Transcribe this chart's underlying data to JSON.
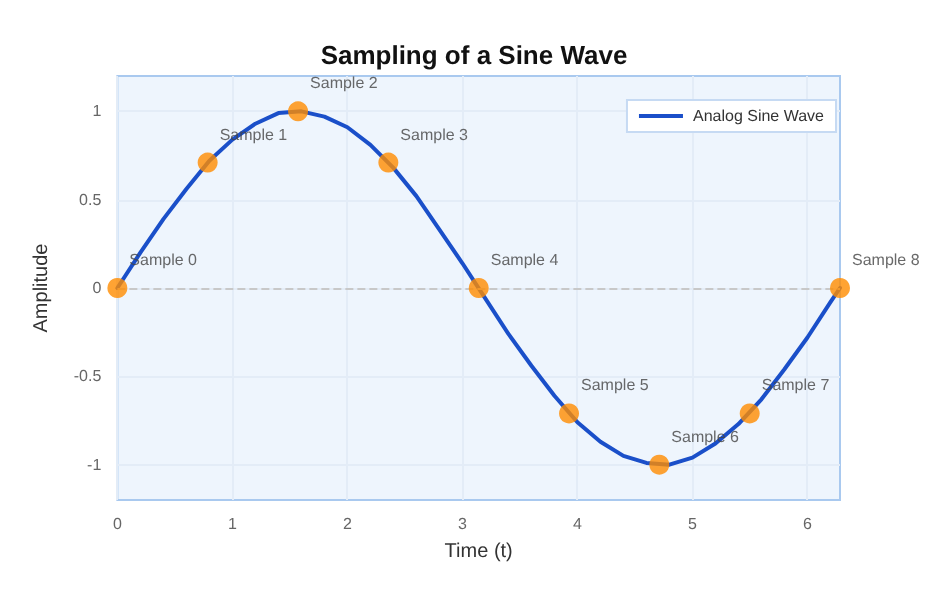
{
  "chart_data": {
    "type": "line",
    "title": "Sampling of a Sine Wave",
    "xlabel": "Time (t)",
    "ylabel": "Amplitude",
    "xlim": [
      0,
      6.283
    ],
    "xticks": [
      0,
      1,
      2,
      3,
      4,
      5,
      6
    ],
    "ylim": [
      -1.2,
      1.2
    ],
    "yticks": [
      -1,
      -0.5,
      0,
      0.5,
      1
    ],
    "grid": true,
    "legend": "top right",
    "series": [
      {
        "name": "Analog Sine Wave",
        "color": "#1a4fc9",
        "marker": "none",
        "x": [
          0,
          0.2,
          0.4,
          0.6,
          0.8,
          1.0,
          1.2,
          1.4,
          1.6,
          1.8,
          2.0,
          2.2,
          2.4,
          2.6,
          2.8,
          3.0,
          3.2,
          3.4,
          3.6,
          3.8,
          4.0,
          4.2,
          4.4,
          4.6,
          4.8,
          5.0,
          5.2,
          5.4,
          5.6,
          5.8,
          6.0,
          6.2,
          6.283
        ],
        "values": [
          0,
          0.2,
          0.39,
          0.56,
          0.72,
          0.84,
          0.93,
          0.99,
          1.0,
          0.97,
          0.91,
          0.81,
          0.68,
          0.52,
          0.33,
          0.14,
          -0.06,
          -0.26,
          -0.44,
          -0.61,
          -0.76,
          -0.87,
          -0.95,
          -0.99,
          -1.0,
          -0.96,
          -0.88,
          -0.77,
          -0.63,
          -0.46,
          -0.28,
          -0.08,
          0
        ]
      },
      {
        "type": "scatter",
        "color": "#ff8c00",
        "marker": "circle",
        "x": [
          0,
          0.785,
          1.571,
          2.356,
          3.142,
          3.927,
          4.712,
          5.498,
          6.283
        ],
        "values": [
          0,
          0.71,
          1,
          0.71,
          0,
          -0.71,
          -1,
          -0.71,
          0
        ],
        "value_labels": [
          "Sample 0",
          "Sample 1",
          "Sample 2",
          "Sample 3",
          "Sample 4",
          "Sample 5",
          "Sample 6",
          "Sample 7",
          "Sample 8"
        ]
      }
    ],
    "ref_lines": [
      {
        "axis": "y",
        "value": 0,
        "color": "#c8c8c8",
        "line_style": "dashed"
      }
    ]
  }
}
